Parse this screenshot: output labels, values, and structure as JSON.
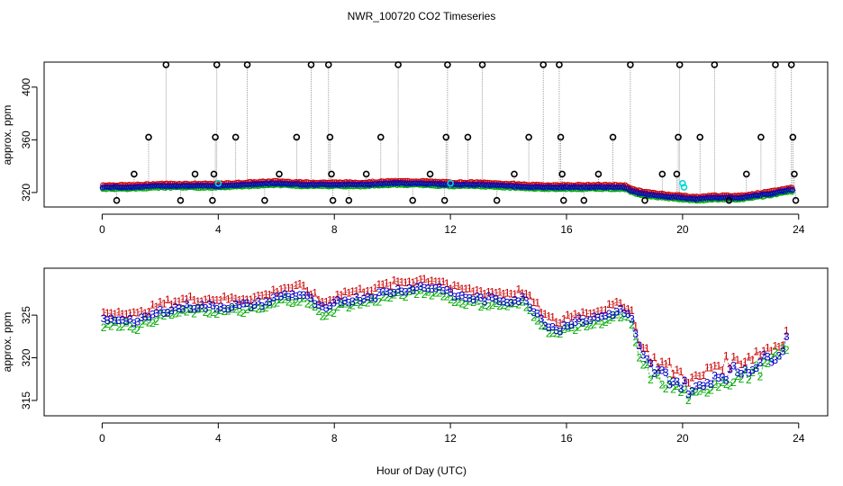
{
  "title": "NWR_100720  CO2 Timeseries",
  "xlabel": "Hour of Day (UTC)",
  "colors": {
    "raw": "#000000",
    "series1": "#cc0000",
    "series2": "#00aa00",
    "series3": "#0000cc",
    "flagged": "#00d8d8",
    "connector": "#888888"
  },
  "chart_data": [
    {
      "type": "scatter",
      "panel": "top",
      "ylabel": "approx. ppm",
      "xlim": [
        -2,
        25
      ],
      "ylim": [
        309,
        419
      ],
      "xticks": [
        0,
        4,
        8,
        12,
        16,
        20,
        24
      ],
      "yticks": [
        320,
        360,
        400
      ],
      "baseline": [
        [
          0,
          324
        ],
        [
          1,
          324
        ],
        [
          2,
          325
        ],
        [
          3,
          325
        ],
        [
          4,
          325
        ],
        [
          5,
          326
        ],
        [
          6,
          327
        ],
        [
          7,
          326
        ],
        [
          8,
          326
        ],
        [
          9,
          326
        ],
        [
          10,
          327
        ],
        [
          11,
          327
        ],
        [
          12,
          326
        ],
        [
          13,
          326
        ],
        [
          14,
          325
        ],
        [
          15,
          324
        ],
        [
          16,
          324
        ],
        [
          17,
          324
        ],
        [
          18,
          324
        ],
        [
          18.4,
          320
        ],
        [
          19,
          318
        ],
        [
          20,
          316
        ],
        [
          20.5,
          315
        ],
        [
          21,
          316
        ],
        [
          22,
          316
        ],
        [
          23,
          319
        ],
        [
          23.7,
          322
        ]
      ],
      "raw_spikes": [
        {
          "x": 0.5,
          "y": 314
        },
        {
          "x": 1.1,
          "y": 334
        },
        {
          "x": 1.6,
          "y": 362
        },
        {
          "x": 2.2,
          "y": 417
        },
        {
          "x": 2.7,
          "y": 314
        },
        {
          "x": 3.2,
          "y": 334
        },
        {
          "x": 3.8,
          "y": 314
        },
        {
          "x": 3.85,
          "y": 334
        },
        {
          "x": 3.9,
          "y": 362
        },
        {
          "x": 3.95,
          "y": 417
        },
        {
          "x": 4.6,
          "y": 362
        },
        {
          "x": 5.0,
          "y": 417
        },
        {
          "x": 5.6,
          "y": 314
        },
        {
          "x": 6.1,
          "y": 334
        },
        {
          "x": 6.7,
          "y": 362
        },
        {
          "x": 7.2,
          "y": 417
        },
        {
          "x": 7.8,
          "y": 417
        },
        {
          "x": 7.85,
          "y": 362
        },
        {
          "x": 7.9,
          "y": 334
        },
        {
          "x": 7.95,
          "y": 314
        },
        {
          "x": 8.5,
          "y": 314
        },
        {
          "x": 9.1,
          "y": 334
        },
        {
          "x": 9.6,
          "y": 362
        },
        {
          "x": 10.2,
          "y": 417
        },
        {
          "x": 10.7,
          "y": 314
        },
        {
          "x": 11.3,
          "y": 334
        },
        {
          "x": 11.8,
          "y": 314
        },
        {
          "x": 11.85,
          "y": 362
        },
        {
          "x": 11.9,
          "y": 417
        },
        {
          "x": 12.6,
          "y": 362
        },
        {
          "x": 13.1,
          "y": 417
        },
        {
          "x": 13.6,
          "y": 314
        },
        {
          "x": 14.2,
          "y": 334
        },
        {
          "x": 14.7,
          "y": 362
        },
        {
          "x": 15.2,
          "y": 417
        },
        {
          "x": 15.75,
          "y": 417
        },
        {
          "x": 15.8,
          "y": 362
        },
        {
          "x": 15.85,
          "y": 334
        },
        {
          "x": 15.9,
          "y": 314
        },
        {
          "x": 16.6,
          "y": 314
        },
        {
          "x": 17.1,
          "y": 334
        },
        {
          "x": 17.6,
          "y": 362
        },
        {
          "x": 18.2,
          "y": 417
        },
        {
          "x": 18.7,
          "y": 314
        },
        {
          "x": 19.3,
          "y": 334
        },
        {
          "x": 19.8,
          "y": 334
        },
        {
          "x": 19.85,
          "y": 362
        },
        {
          "x": 19.9,
          "y": 417
        },
        {
          "x": 20.6,
          "y": 362
        },
        {
          "x": 21.1,
          "y": 417
        },
        {
          "x": 21.6,
          "y": 314
        },
        {
          "x": 22.2,
          "y": 334
        },
        {
          "x": 22.7,
          "y": 362
        },
        {
          "x": 23.2,
          "y": 417
        },
        {
          "x": 23.75,
          "y": 417
        },
        {
          "x": 23.8,
          "y": 362
        },
        {
          "x": 23.85,
          "y": 334
        },
        {
          "x": 23.9,
          "y": 314
        }
      ],
      "flagged_points": [
        {
          "x": 4.0,
          "y": 327
        },
        {
          "x": 12.0,
          "y": 327
        },
        {
          "x": 20.0,
          "y": 327
        },
        {
          "x": 20.05,
          "y": 324
        }
      ]
    },
    {
      "type": "scatter",
      "panel": "bottom",
      "ylabel": "approx. ppm",
      "xlim": [
        -2,
        25
      ],
      "ylim": [
        313.2,
        330.5
      ],
      "xticks": [
        0,
        4,
        8,
        12,
        16,
        20,
        24
      ],
      "yticks": [
        315,
        320,
        325
      ],
      "series": [
        {
          "name": "1",
          "label": "1",
          "color": "#cc0000",
          "offset": 0.9
        },
        {
          "name": "2",
          "label": "2",
          "color": "#00aa00",
          "offset": -0.6
        },
        {
          "name": "3",
          "label": "3",
          "color": "#0000cc",
          "offset": 0
        }
      ],
      "baseline": [
        [
          0,
          324.3
        ],
        [
          0.8,
          324.6
        ],
        [
          1.2,
          324.1
        ],
        [
          1.6,
          324.8
        ],
        [
          2.2,
          325.6
        ],
        [
          3,
          326
        ],
        [
          3.7,
          326
        ],
        [
          4.2,
          326
        ],
        [
          5,
          326.1
        ],
        [
          5.6,
          326.4
        ],
        [
          6.2,
          327.3
        ],
        [
          6.9,
          327.4
        ],
        [
          7.3,
          326.5
        ],
        [
          7.5,
          325.7
        ],
        [
          7.9,
          325.8
        ],
        [
          8.1,
          326.6
        ],
        [
          9,
          327
        ],
        [
          10,
          327.8
        ],
        [
          11,
          328.3
        ],
        [
          11.8,
          328.1
        ],
        [
          12,
          327.3
        ],
        [
          13,
          326.9
        ],
        [
          14,
          326.7
        ],
        [
          14.5,
          326.9
        ],
        [
          15,
          325.2
        ],
        [
          15.3,
          323.9
        ],
        [
          15.8,
          323.2
        ],
        [
          16,
          324
        ],
        [
          17,
          324.6
        ],
        [
          17.9,
          325.5
        ],
        [
          18.2,
          324.8
        ],
        [
          18.4,
          322
        ],
        [
          18.6,
          320
        ],
        [
          19,
          318.5
        ],
        [
          19.5,
          317.7
        ],
        [
          20,
          316.8
        ],
        [
          20.4,
          316
        ],
        [
          20.8,
          316.9
        ],
        [
          21,
          317.8
        ],
        [
          22,
          318.5
        ],
        [
          22.8,
          319.6
        ],
        [
          23.4,
          321
        ],
        [
          23.7,
          322.8
        ]
      ]
    }
  ]
}
